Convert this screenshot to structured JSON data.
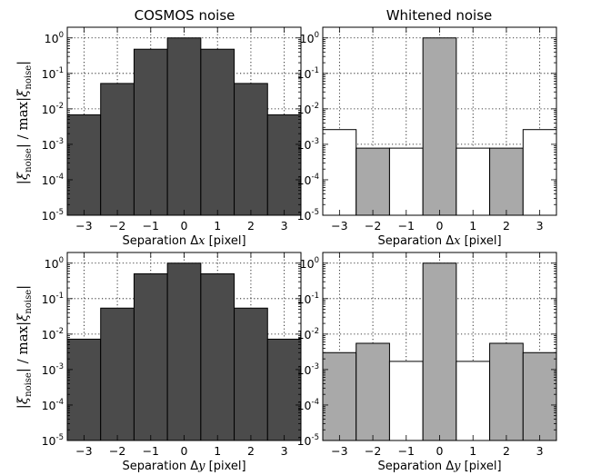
{
  "figure": {
    "column_titles": [
      "COSMOS noise",
      "Whitened noise"
    ],
    "ylabel_parts": {
      "bar_open": "|",
      "xi": "ξ",
      "sub": "noise",
      "bar_mid": "| / max|",
      "bar_close": "|"
    }
  },
  "chart_data": [
    {
      "id": "cosmos-x",
      "type": "bar",
      "title": "COSMOS noise",
      "xlabel_prefix": "Separation Δ",
      "xlabel_var": "x",
      "xlabel_suffix": " [pixel]",
      "x": [
        -3,
        -2,
        -1,
        0,
        1,
        2,
        3
      ],
      "values": [
        0.0068,
        0.052,
        0.48,
        1.0,
        0.48,
        0.052,
        0.0068
      ],
      "fills": [
        "dark",
        "dark",
        "dark",
        "dark",
        "dark",
        "dark",
        "dark"
      ],
      "ylim": [
        1e-05,
        2.0
      ],
      "xlim": [
        -3.5,
        3.5
      ],
      "yscale": "log",
      "grid": true,
      "xticks": [
        "−3",
        "−2",
        "−1",
        "0",
        "1",
        "2",
        "3"
      ],
      "ytick_base": "10",
      "ytick_exps": [
        "-5",
        "-4",
        "-3",
        "-2",
        "-1",
        "0"
      ]
    },
    {
      "id": "whitened-x",
      "type": "bar",
      "title": "Whitened noise",
      "xlabel_prefix": "Separation Δ",
      "xlabel_var": "x",
      "xlabel_suffix": " [pixel]",
      "x": [
        -3,
        -2,
        -1,
        0,
        1,
        2,
        3
      ],
      "values": [
        0.0026,
        0.00078,
        0.00078,
        1.0,
        0.00078,
        0.00078,
        0.0026
      ],
      "fills": [
        "white",
        "light",
        "white",
        "light",
        "white",
        "light",
        "white"
      ],
      "ylim": [
        1e-05,
        2.0
      ],
      "xlim": [
        -3.5,
        3.5
      ],
      "yscale": "log",
      "grid": true,
      "xticks": [
        "−3",
        "−2",
        "−1",
        "0",
        "1",
        "2",
        "3"
      ],
      "ytick_base": "10",
      "ytick_exps": [
        "-5",
        "-4",
        "-3",
        "-2",
        "-1",
        "0"
      ]
    },
    {
      "id": "cosmos-y",
      "type": "bar",
      "title": "",
      "xlabel_prefix": "Separation Δ",
      "xlabel_var": "y",
      "xlabel_suffix": " [pixel]",
      "x": [
        -3,
        -2,
        -1,
        0,
        1,
        2,
        3
      ],
      "values": [
        0.0072,
        0.054,
        0.5,
        1.0,
        0.5,
        0.054,
        0.0072
      ],
      "fills": [
        "dark",
        "dark",
        "dark",
        "dark",
        "dark",
        "dark",
        "dark"
      ],
      "ylim": [
        1e-05,
        2.0
      ],
      "xlim": [
        -3.5,
        3.5
      ],
      "yscale": "log",
      "grid": true,
      "xticks": [
        "−3",
        "−2",
        "−1",
        "0",
        "1",
        "2",
        "3"
      ],
      "ytick_base": "10",
      "ytick_exps": [
        "-5",
        "-4",
        "-3",
        "-2",
        "-1",
        "0"
      ]
    },
    {
      "id": "whitened-y",
      "type": "bar",
      "title": "",
      "xlabel_prefix": "Separation Δ",
      "xlabel_var": "y",
      "xlabel_suffix": " [pixel]",
      "x": [
        -3,
        -2,
        -1,
        0,
        1,
        2,
        3
      ],
      "values": [
        0.003,
        0.0055,
        0.0017,
        1.0,
        0.0017,
        0.0055,
        0.003
      ],
      "fills": [
        "light",
        "light",
        "white",
        "light",
        "white",
        "light",
        "light"
      ],
      "ylim": [
        1e-05,
        2.0
      ],
      "xlim": [
        -3.5,
        3.5
      ],
      "yscale": "log",
      "grid": true,
      "xticks": [
        "−3",
        "−2",
        "−1",
        "0",
        "1",
        "2",
        "3"
      ],
      "ytick_base": "10",
      "ytick_exps": [
        "-5",
        "-4",
        "-3",
        "-2",
        "-1",
        "0"
      ]
    }
  ],
  "colors": {
    "dark": "#4b4b4b",
    "light": "#a9a9a9",
    "white": "#ffffff",
    "edge": "#000000",
    "grid": "#000000"
  }
}
